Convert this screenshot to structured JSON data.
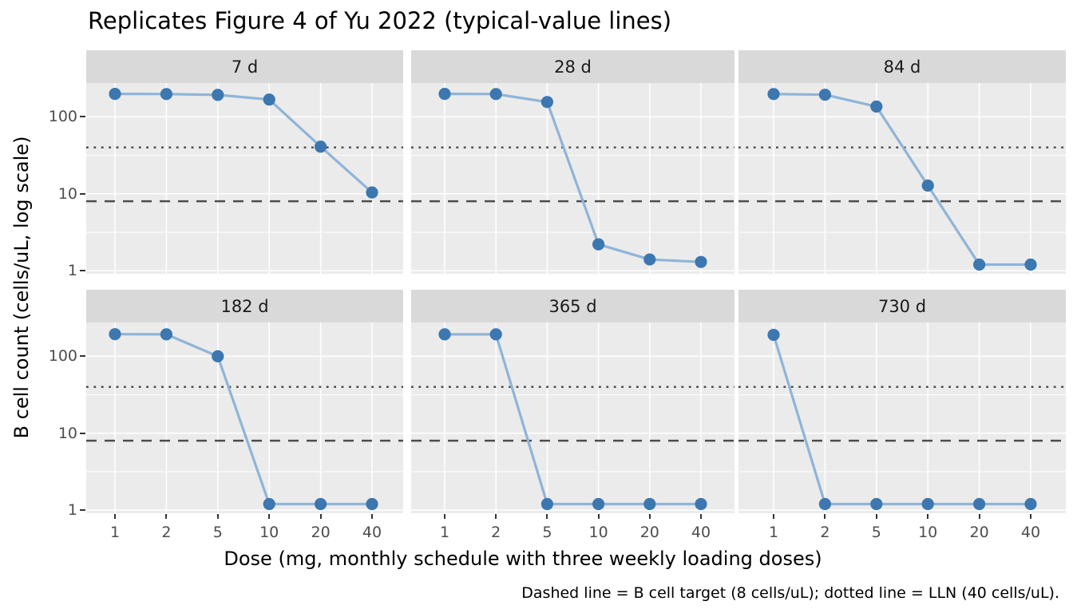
{
  "title": "Replicates Figure 4 of Yu 2022 (typical-value lines)",
  "caption": "Dashed line = B cell target (8 cells/uL); dotted line = LLN (40 cells/uL).",
  "axes": {
    "x_label": "Dose (mg, monthly schedule with three weekly loading doses)",
    "y_label": "B cell count (cells/uL, log scale)",
    "x_tick_labels": [
      "1",
      "2",
      "5",
      "10",
      "20",
      "40"
    ],
    "y_tick_labels": [
      "100",
      "10",
      "1"
    ]
  },
  "chart_data": {
    "type": "line",
    "title": "Replicates Figure 4 of Yu 2022 (typical-value lines)",
    "xlabel": "Dose (mg, monthly schedule with three weekly loading doses)",
    "ylabel": "B cell count (cells/uL, log scale)",
    "x": [
      1,
      2,
      5,
      10,
      20,
      40
    ],
    "x_scale": "dose positions equally spaced",
    "y_scale": "log10",
    "y_ticks": [
      100,
      10,
      1
    ],
    "y_minor_gridlines": [
      3.1623,
      31.623
    ],
    "ylim": [
      0.91,
      275
    ],
    "grid": true,
    "legend": "none",
    "facets": [
      {
        "label": "7 d",
        "values": [
          199,
          198,
          193,
          168,
          41,
          10.4
        ]
      },
      {
        "label": "28 d",
        "values": [
          199,
          198,
          156,
          2.2,
          1.4,
          1.3
        ]
      },
      {
        "label": "84 d",
        "values": [
          198,
          194,
          136,
          12.8,
          1.2,
          1.2
        ]
      },
      {
        "label": "182 d",
        "values": [
          194,
          193,
          100,
          1.2,
          1.2,
          1.2
        ]
      },
      {
        "label": "365 d",
        "values": [
          193,
          193,
          1.2,
          1.2,
          1.2,
          1.2
        ]
      },
      {
        "label": "730 d",
        "values": [
          190,
          1.2,
          1.2,
          1.2,
          1.2,
          1.2
        ]
      }
    ],
    "reference_lines": [
      {
        "style": "dashed",
        "value": 8,
        "meaning": "B cell target (8 cells/uL)"
      },
      {
        "style": "dotted",
        "value": 40,
        "meaning": "LLN (40 cells/uL)"
      }
    ],
    "colors": {
      "point": "#3c77b0",
      "line": "#8fb4d8",
      "panel_bg": "#ebebeb",
      "strip_bg": "#d9d9d9",
      "grid": "#ffffff",
      "ref_line": "#4d4d4d",
      "tick_label": "#4d4d4d"
    }
  }
}
